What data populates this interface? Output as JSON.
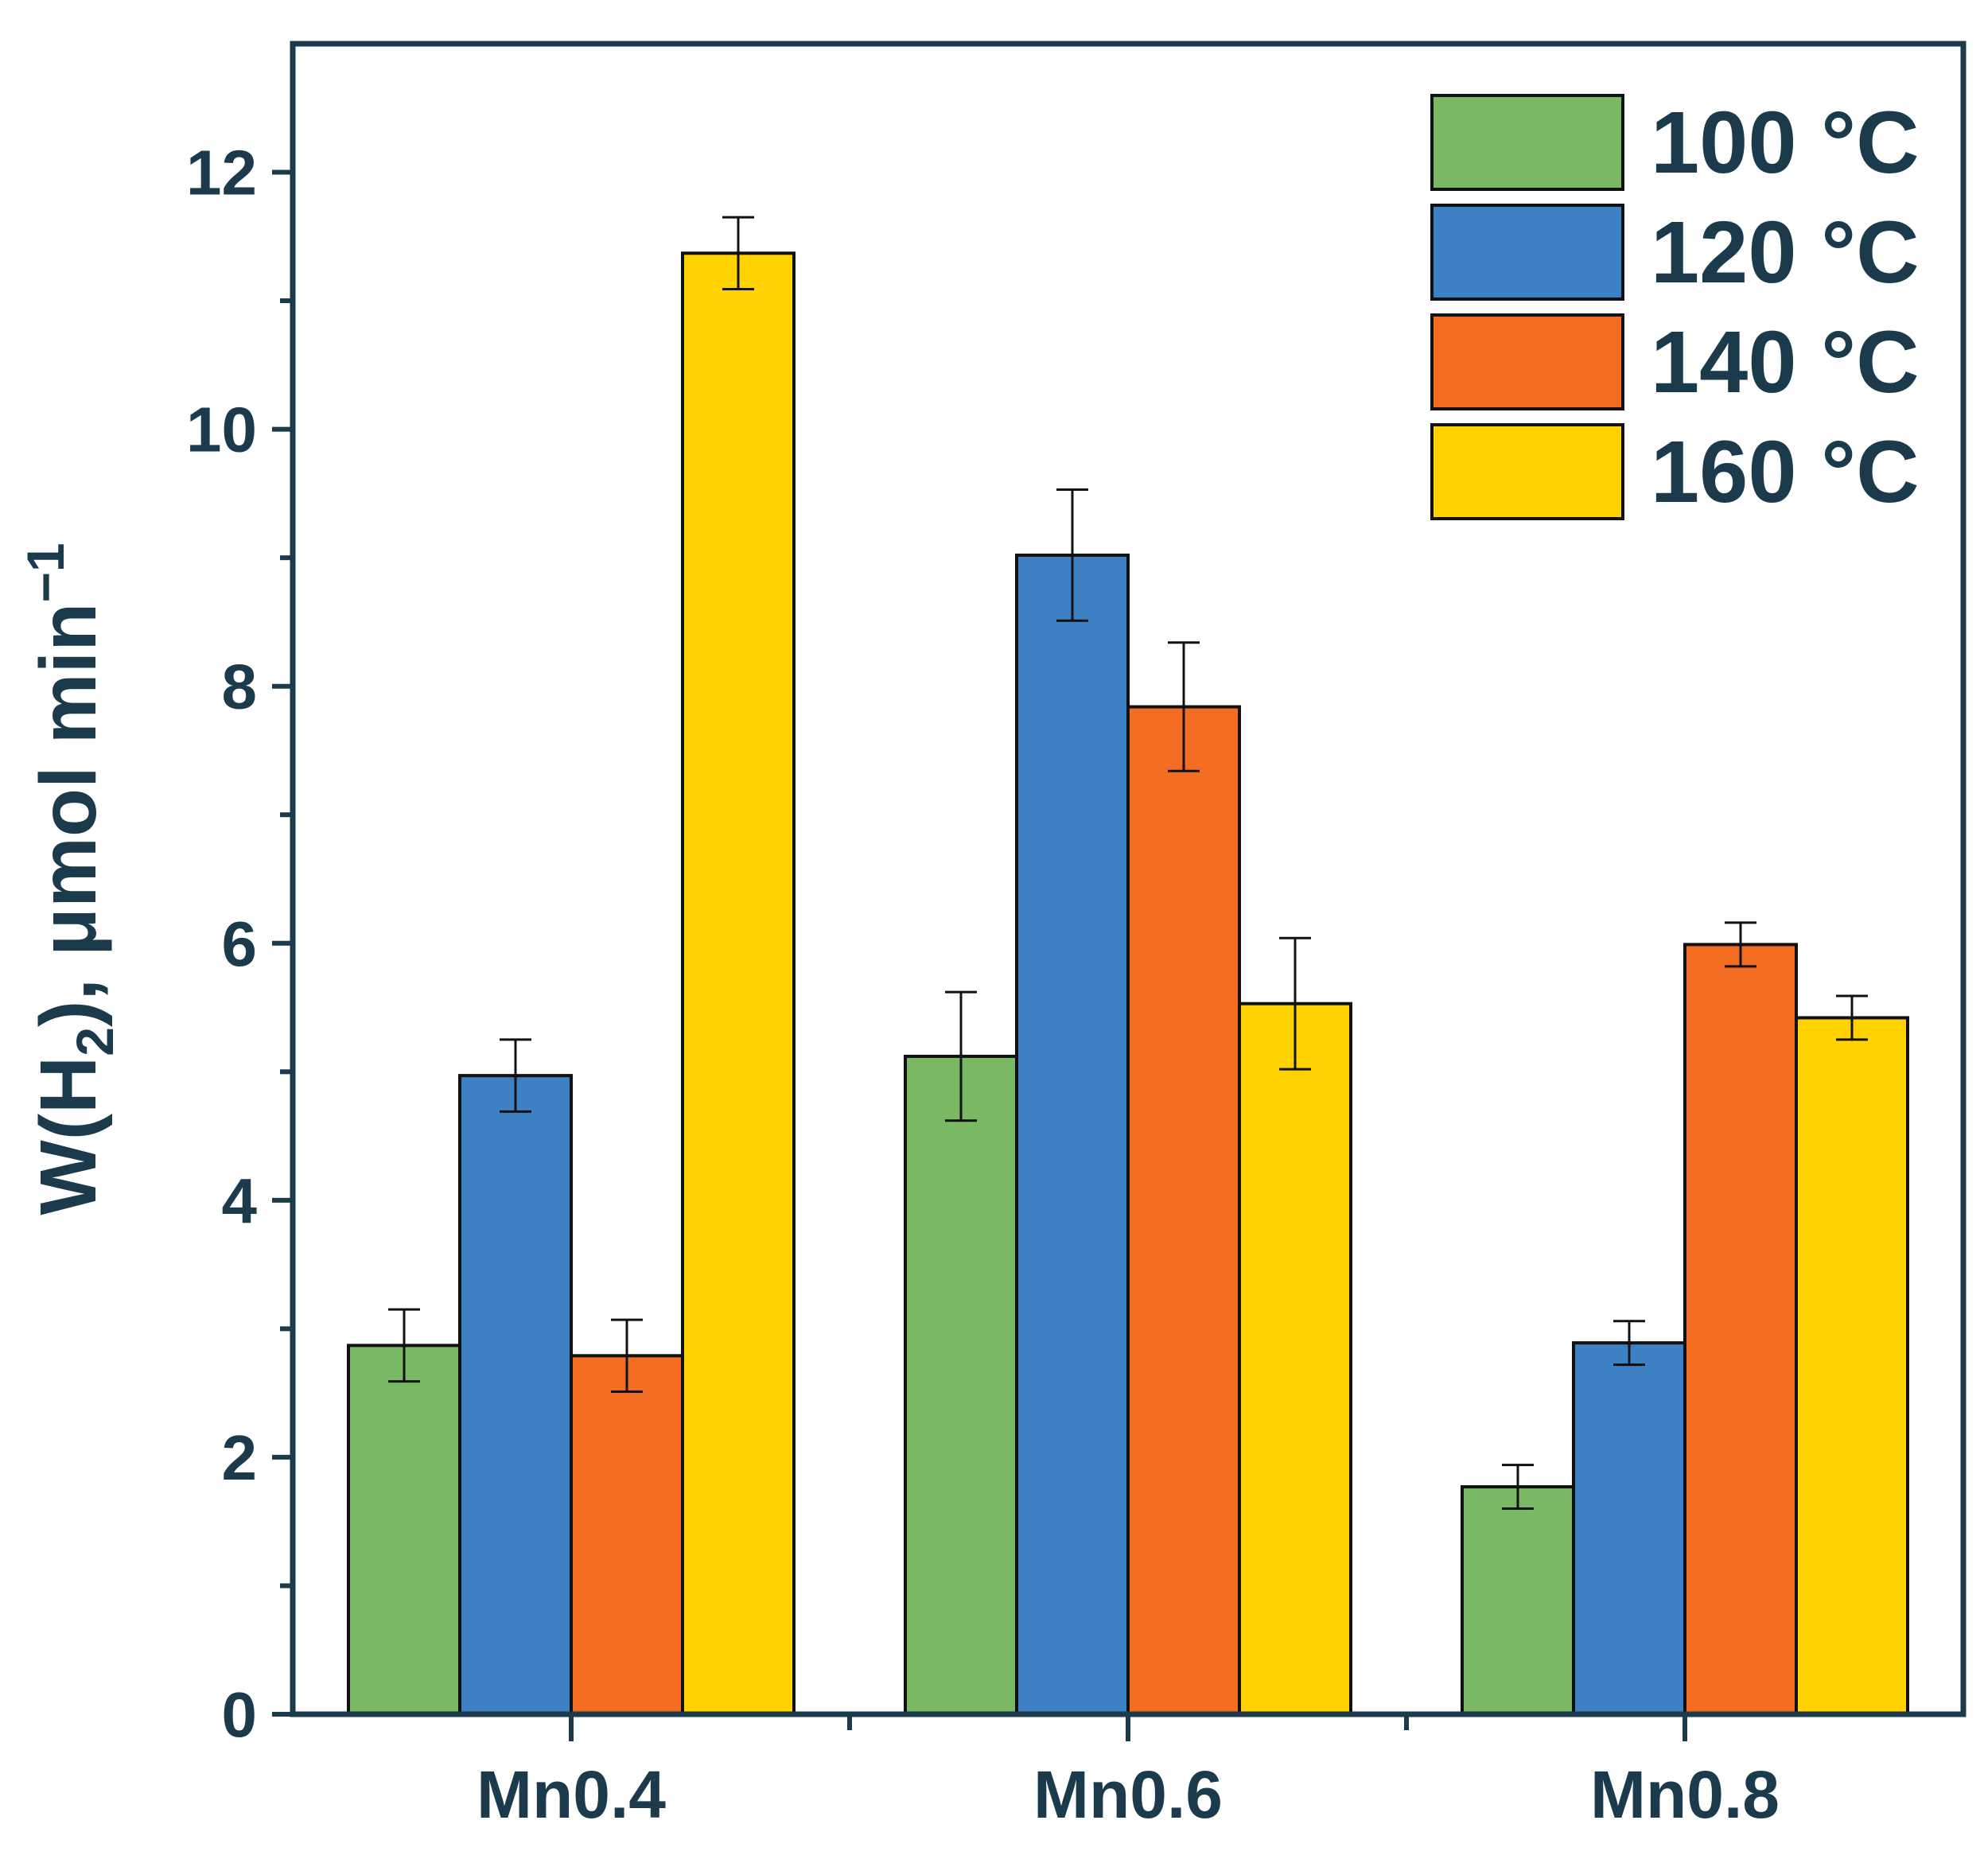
{
  "chart_data": {
    "type": "bar",
    "title": "",
    "xlabel": "",
    "ylabel": {
      "main": "W(H",
      "sub": "2",
      "rest": "), μmol min",
      "sup": "−1"
    },
    "ylim": [
      0,
      13
    ],
    "yticks": [
      "0",
      "2",
      "4",
      "6",
      "8",
      "10",
      "12"
    ],
    "categories": [
      "Mn0.4",
      "Mn0.6",
      "Mn0.8"
    ],
    "series": [
      {
        "name": "100 °C",
        "color": "#7ab863",
        "values": [
          2.87,
          5.12,
          1.77
        ],
        "errors": [
          0.28,
          0.5,
          0.17
        ]
      },
      {
        "name": "120 °C",
        "color": "#3d80c3",
        "values": [
          4.97,
          9.02,
          2.89
        ],
        "errors": [
          0.28,
          0.51,
          0.17
        ]
      },
      {
        "name": "140 °C",
        "color": "#f26d22",
        "values": [
          2.79,
          7.84,
          5.99
        ],
        "errors": [
          0.28,
          0.5,
          0.17
        ]
      },
      {
        "name": "160 °C",
        "color": "#ffd200",
        "values": [
          11.37,
          5.53,
          5.42
        ],
        "errors": [
          0.28,
          0.51,
          0.17
        ]
      }
    ],
    "legend_position": "top-right",
    "grid": false
  }
}
